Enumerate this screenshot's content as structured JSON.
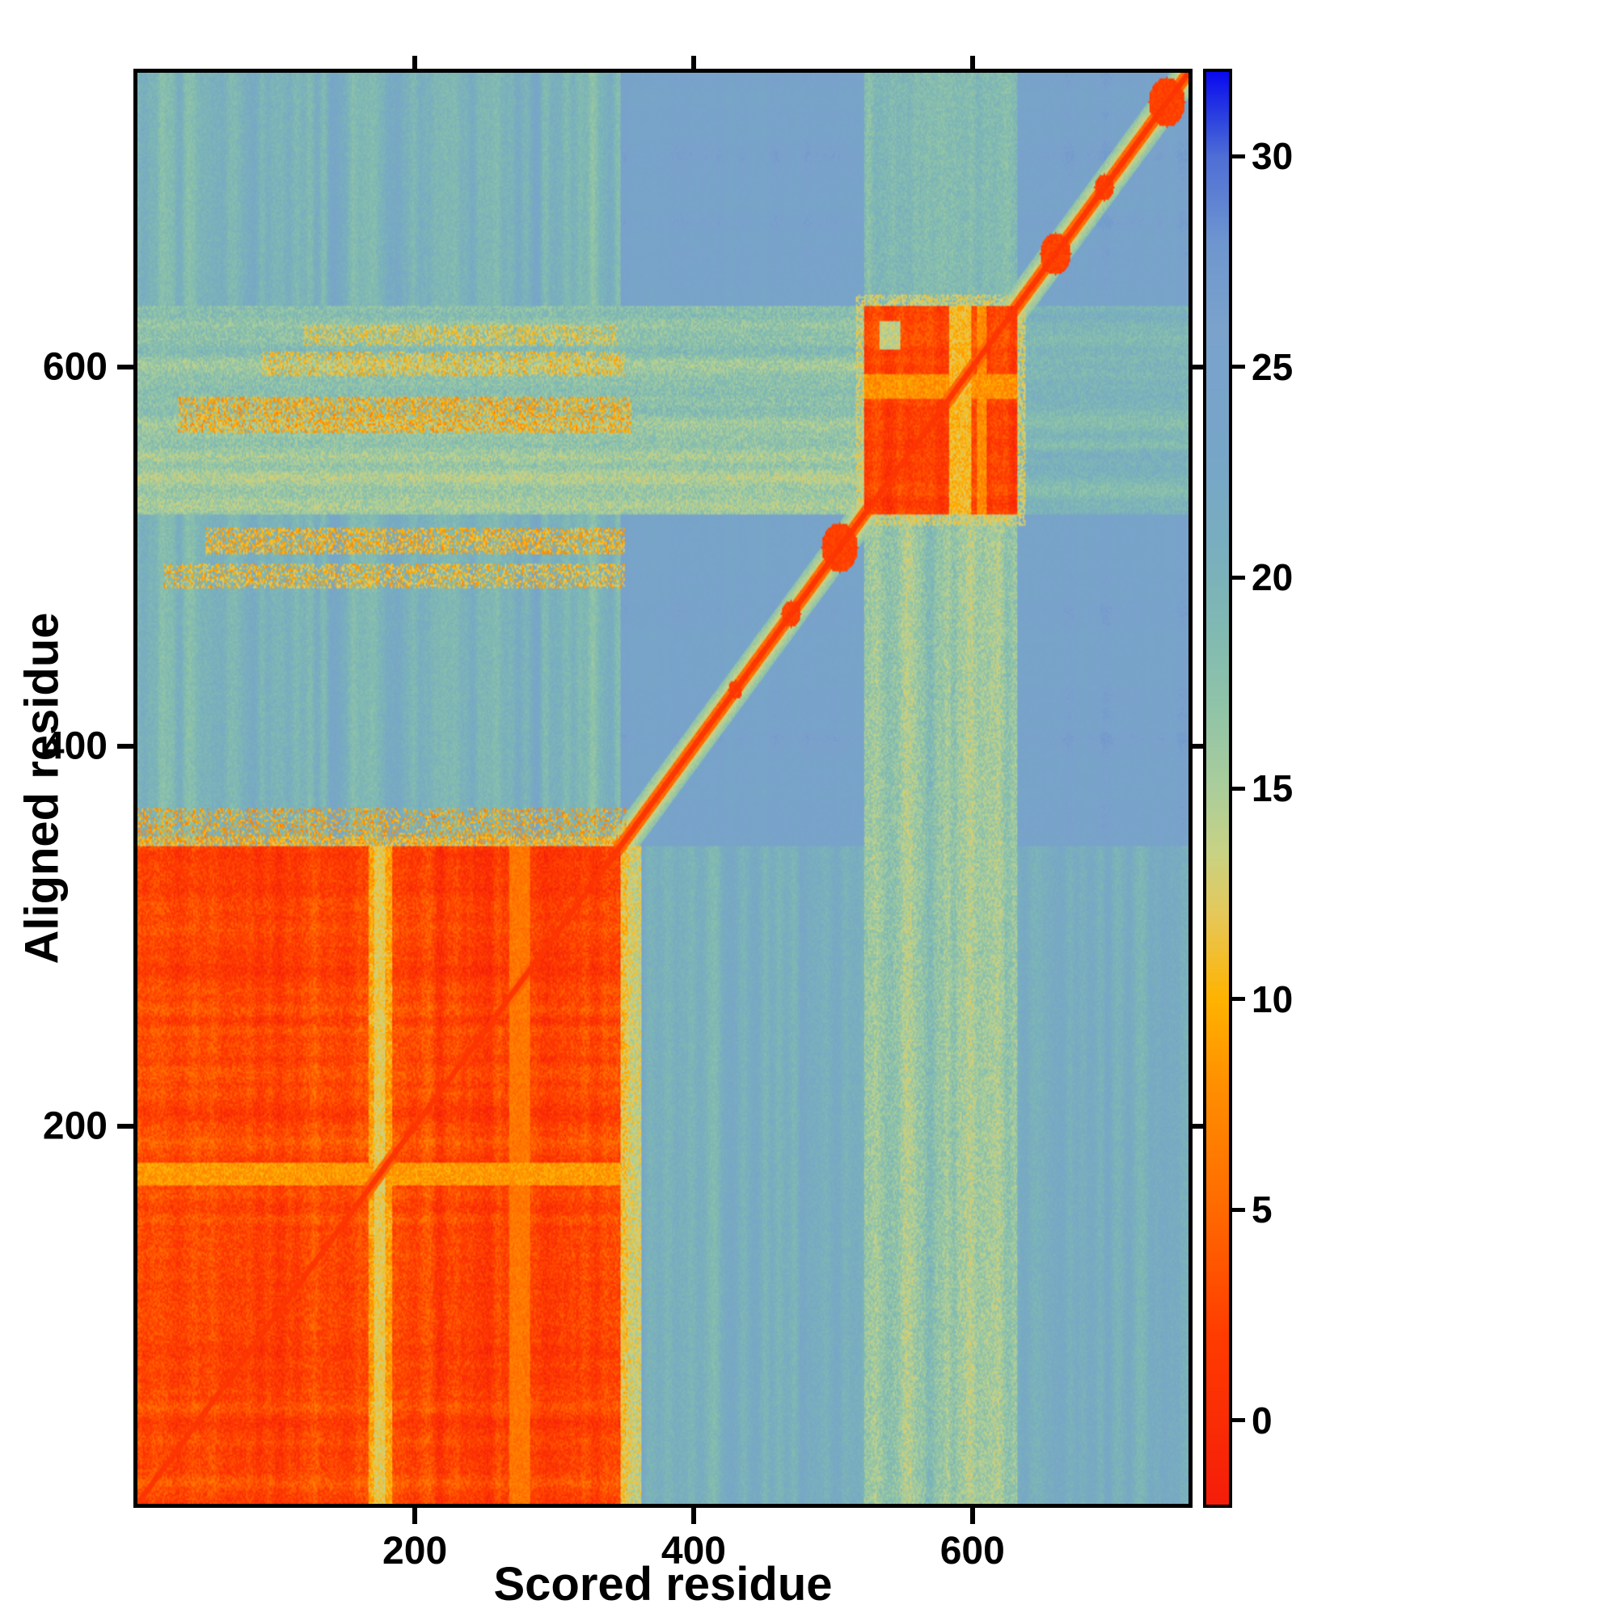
{
  "chart_data": {
    "type": "heatmap",
    "title": "",
    "xlabel": "Scored residue",
    "ylabel": "Aligned residue",
    "x": {
      "min": 1,
      "max": 755,
      "ticks": [
        200,
        400,
        600
      ]
    },
    "y": {
      "min": 1,
      "max": 755,
      "ticks": [
        200,
        400,
        600
      ]
    },
    "colorbar": {
      "min": -2,
      "max": 32,
      "ticks": [
        0,
        5,
        10,
        15,
        20,
        25,
        30
      ]
    },
    "grid_n": 755,
    "legend": "none",
    "grid": "off",
    "description": "Pairwise residue alignment-error heatmap. Low values (red, ~0-5) along the main diagonal, over a large block covering residues 1-347 x 1-347, and over a second block covering residues 523-632 x 523-632. Background is high error (steel blue, ~22-27) with yellow-green streaked cross-bands (~10-17) aligned with the red blocks, pale gap lines inside both blocks near residue 175 and residue 590, and dotted orange rows around aligned residues 350-620 on the left side.",
    "base": {
      "value": 24.8,
      "col_amp": 1.6,
      "row_amp": 1.2,
      "cell_amp": 0.7
    },
    "colormap": [
      [
        -2,
        "#f51d0a"
      ],
      [
        2,
        "#ff3c00"
      ],
      [
        5,
        "#ff6a00"
      ],
      [
        8,
        "#ff9000"
      ],
      [
        10,
        "#ffb300"
      ],
      [
        12,
        "#e6c85a"
      ],
      [
        13.5,
        "#c8d284"
      ],
      [
        15,
        "#abcd9b"
      ],
      [
        17,
        "#8fc3a8"
      ],
      [
        19,
        "#7fb8b4"
      ],
      [
        21,
        "#78adc0"
      ],
      [
        23,
        "#77a5c8"
      ],
      [
        26,
        "#7aa2cb"
      ],
      [
        28,
        "#6e96cf"
      ],
      [
        30,
        "#4f6fd6"
      ],
      [
        31,
        "#2a3fe0"
      ],
      [
        32,
        "#0b0bf0"
      ]
    ],
    "regions": [
      {
        "name": "upper-left-field",
        "x": [
          1,
          347
        ],
        "y": [
          348,
          755
        ],
        "value": 20,
        "amp": 1.3,
        "streak": "col",
        "spread": 3,
        "mode": "min"
      },
      {
        "name": "lower-right-field",
        "x": [
          348,
          755
        ],
        "y": [
          1,
          347
        ],
        "value": 21,
        "amp": 1.2,
        "streak": "col",
        "spread": 2.4,
        "mode": "min"
      },
      {
        "name": "block2-cols-below",
        "x": [
          523,
          632
        ],
        "y": [
          1,
          522
        ],
        "value": 16.5,
        "amp": 2.4,
        "streak": "col",
        "spread": 2.4,
        "mode": "min"
      },
      {
        "name": "block2-cols-above",
        "x": [
          523,
          632
        ],
        "y": [
          633,
          755
        ],
        "value": 19,
        "amp": 1.8,
        "streak": "col",
        "spread": 2,
        "mode": "min"
      },
      {
        "name": "block2-rows-left",
        "x": [
          1,
          522
        ],
        "y": [
          523,
          632
        ],
        "value": 16.5,
        "amp": 2.4,
        "streak": "row",
        "spread": 2.4,
        "mode": "min"
      },
      {
        "name": "block2-rows-right",
        "x": [
          633,
          755
        ],
        "y": [
          523,
          632
        ],
        "value": 19.5,
        "amp": 1.8,
        "streak": "row",
        "spread": 2,
        "mode": "min"
      },
      {
        "name": "dotted-row-1",
        "x": [
          20,
          350
        ],
        "y": [
          484,
          496
        ],
        "value": 10.5,
        "amp": 3,
        "mode": "min",
        "speckle": 0.5
      },
      {
        "name": "dotted-row-2",
        "x": [
          50,
          350
        ],
        "y": [
          502,
          515
        ],
        "value": 10,
        "amp": 3,
        "mode": "min",
        "speckle": 0.55
      },
      {
        "name": "dotted-row-3",
        "x": [
          30,
          355
        ],
        "y": [
          566,
          584
        ],
        "value": 9.5,
        "amp": 3,
        "mode": "min",
        "speckle": 0.55
      },
      {
        "name": "dotted-row-4",
        "x": [
          90,
          350
        ],
        "y": [
          596,
          608
        ],
        "value": 11,
        "amp": 3,
        "mode": "min",
        "speckle": 0.5
      },
      {
        "name": "dotted-row-5",
        "x": [
          120,
          345
        ],
        "y": [
          612,
          622
        ],
        "value": 11.5,
        "amp": 2.5,
        "mode": "min",
        "speckle": 0.45
      },
      {
        "name": "dotted-row-above-block",
        "x": [
          1,
          352
        ],
        "y": [
          349,
          367
        ],
        "value": 9,
        "amp": 3,
        "mode": "min",
        "speckle": 0.4
      },
      {
        "name": "main-block-fringe",
        "x": [
          1,
          352
        ],
        "y": [
          1,
          352
        ],
        "value": 11,
        "amp": 3,
        "mode": "min",
        "speckle": 0.7
      },
      {
        "name": "main-block-right-fringe",
        "x": [
          348,
          362
        ],
        "y": [
          1,
          347
        ],
        "value": 13,
        "amp": 3,
        "streak": "col",
        "spread": 2,
        "mode": "min"
      },
      {
        "name": "main-block",
        "x": [
          1,
          347
        ],
        "y": [
          1,
          347
        ],
        "value": 2.3,
        "amp": 2.1,
        "streak": "both",
        "spread": 2,
        "mode": "min"
      },
      {
        "name": "main-block-pale-col",
        "x": [
          167,
          183
        ],
        "y": [
          1,
          347
        ],
        "value": 9,
        "amp": 2.5,
        "streak": "row",
        "spread": 1.5,
        "mode": "max"
      },
      {
        "name": "main-block-pale-col-core",
        "x": [
          171,
          178
        ],
        "y": [
          1,
          347
        ],
        "value": 12,
        "amp": 2,
        "mode": "max"
      },
      {
        "name": "main-block-pale-row",
        "x": [
          1,
          347
        ],
        "y": [
          169,
          180
        ],
        "value": 8.5,
        "amp": 2,
        "mode": "max"
      },
      {
        "name": "main-block-faint-col",
        "x": [
          268,
          282
        ],
        "y": [
          1,
          347
        ],
        "value": 6,
        "amp": 1.5,
        "mode": "max"
      },
      {
        "name": "second-block-fringe",
        "x": [
          517,
          638
        ],
        "y": [
          517,
          638
        ],
        "value": 13,
        "amp": 2.5,
        "mode": "min",
        "speckle": 0.65
      },
      {
        "name": "second-block",
        "x": [
          523,
          632
        ],
        "y": [
          523,
          632
        ],
        "value": 2.3,
        "amp": 1.8,
        "streak": "both",
        "spread": 1.8,
        "mode": "min"
      },
      {
        "name": "second-block-gap-col",
        "x": [
          584,
          599
        ],
        "y": [
          523,
          632
        ],
        "value": 10.5,
        "amp": 2.2,
        "mode": "max"
      },
      {
        "name": "second-block-gap-col2",
        "x": [
          604,
          610
        ],
        "y": [
          523,
          632
        ],
        "value": 7.5,
        "amp": 2,
        "mode": "max"
      },
      {
        "name": "second-block-gap-row",
        "x": [
          523,
          632
        ],
        "y": [
          584,
          596
        ],
        "value": 8,
        "amp": 2,
        "mode": "max"
      },
      {
        "name": "second-block-pale-spot",
        "x": [
          534,
          548
        ],
        "y": [
          610,
          624
        ],
        "value": 14,
        "amp": 2,
        "mode": "max"
      }
    ],
    "diagonal": {
      "core_w": 2.5,
      "halo_w": 13,
      "blobs": [
        {
          "c": 430,
          "r": 5
        },
        {
          "c": 470,
          "r": 7
        },
        {
          "c": 505,
          "r": 13
        },
        {
          "c": 660,
          "r": 11
        },
        {
          "c": 695,
          "r": 7
        },
        {
          "c": 740,
          "r": 13
        }
      ]
    }
  }
}
